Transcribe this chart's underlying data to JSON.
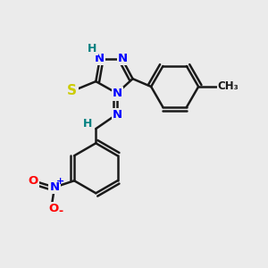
{
  "background_color": "#ebebeb",
  "atom_colors": {
    "N": "#0000ff",
    "S": "#cccc00",
    "O": "#ff0000",
    "C": "#1a1a1a",
    "H": "#008080"
  },
  "bond_lw": 1.8
}
